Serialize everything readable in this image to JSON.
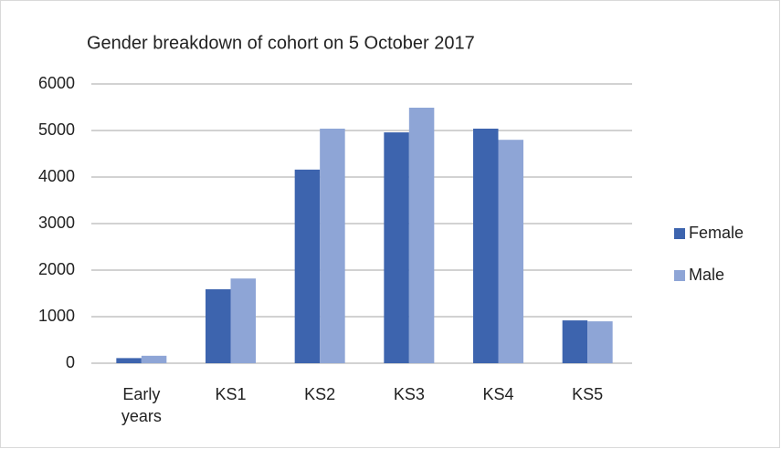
{
  "chart_data": {
    "type": "bar",
    "title": "Gender breakdown of cohort on 5 October 2017",
    "categories": [
      "Early years",
      "KS1",
      "KS2",
      "KS3",
      "KS4",
      "KS5"
    ],
    "series": [
      {
        "name": "Female",
        "color": "#3d64ae",
        "values": [
          110,
          1590,
          4160,
          4960,
          5040,
          920
        ]
      },
      {
        "name": "Male",
        "color": "#8ea5d6",
        "values": [
          160,
          1820,
          5040,
          5490,
          4800,
          900
        ]
      }
    ],
    "ylim": [
      0,
      6000
    ],
    "yticks": [
      0,
      1000,
      2000,
      3000,
      4000,
      5000,
      6000
    ],
    "grid": true,
    "legend": "right"
  }
}
